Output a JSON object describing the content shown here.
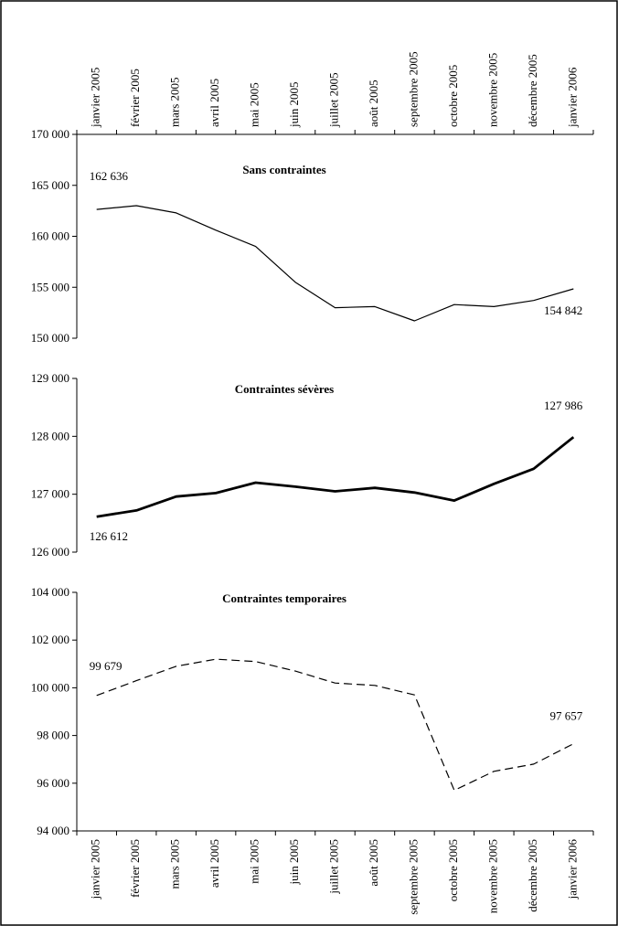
{
  "chart_data": [
    {
      "type": "line",
      "title": "Sans contraintes",
      "categories": [
        "janvier 2005",
        "février 2005",
        "mars 2005",
        "avril 2005",
        "mai 2005",
        "juin 2005",
        "juillet 2005",
        "août 2005",
        "septembre 2005",
        "octobre 2005",
        "novembre 2005",
        "décembre 2005",
        "janvier 2006"
      ],
      "values": [
        162636,
        163000,
        162300,
        160600,
        159000,
        155500,
        153000,
        153100,
        151700,
        153300,
        153100,
        153700,
        154842
      ],
      "value_labels": [
        "162 636",
        null,
        null,
        null,
        null,
        null,
        null,
        null,
        null,
        null,
        null,
        null,
        "154 842"
      ],
      "color": "#000000",
      "line_style": "solid",
      "ylim": [
        150000,
        170000
      ],
      "yticks": [
        {
          "value": 150000,
          "label": "150 000"
        },
        {
          "value": 155000,
          "label": "155 000"
        },
        {
          "value": 160000,
          "label": "160 000"
        },
        {
          "value": 165000,
          "label": "165 000"
        },
        {
          "value": 170000,
          "label": "170 000"
        }
      ]
    },
    {
      "type": "line",
      "title": "Contraintes sévères",
      "values": [
        126612,
        126720,
        126960,
        127020,
        127200,
        127130,
        127050,
        127110,
        127030,
        126890,
        127180,
        127440,
        127986
      ],
      "value_labels": [
        "126 612",
        null,
        null,
        null,
        null,
        null,
        null,
        null,
        null,
        null,
        null,
        null,
        "127 986"
      ],
      "color": "#000000",
      "line_style": "bold",
      "ylim": [
        126000,
        129000
      ],
      "yticks": [
        {
          "value": 126000,
          "label": "126 000"
        },
        {
          "value": 127000,
          "label": "127 000"
        },
        {
          "value": 128000,
          "label": "128 000"
        },
        {
          "value": 129000,
          "label": "129 000"
        }
      ]
    },
    {
      "type": "line",
      "title": "Contraintes temporaires",
      "categories": [
        "janvier 2005",
        "février 2005",
        "mars 2005",
        "avril 2005",
        "mai 2005",
        "juin 2005",
        "juillet 2005",
        "août 2005",
        "septembre 2005",
        "octobre 2005",
        "novembre 2005",
        "décembre 2005",
        "janvier 2006"
      ],
      "values": [
        99679,
        100300,
        100900,
        101200,
        101100,
        100700,
        100200,
        100100,
        99700,
        95700,
        96500,
        96800,
        97657
      ],
      "value_labels": [
        "99 679",
        null,
        null,
        null,
        null,
        null,
        null,
        null,
        null,
        null,
        null,
        null,
        "97 657"
      ],
      "color": "#000000",
      "line_style": "dashed",
      "ylim": [
        94000,
        104000
      ],
      "yticks": [
        {
          "value": 94000,
          "label": "94 000"
        },
        {
          "value": 96000,
          "label": "96 000"
        },
        {
          "value": 98000,
          "label": "98 000"
        },
        {
          "value": 100000,
          "label": "100 000"
        },
        {
          "value": 102000,
          "label": "102 000"
        },
        {
          "value": 104000,
          "label": "104 000"
        }
      ]
    }
  ]
}
